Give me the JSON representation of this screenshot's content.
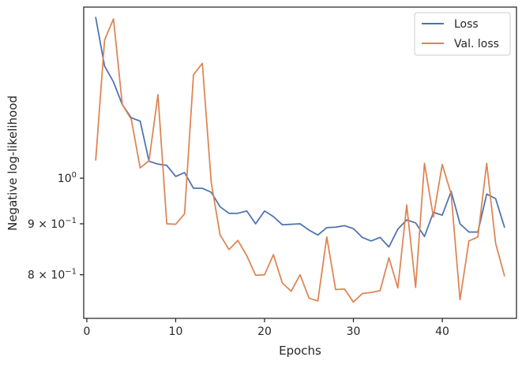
{
  "chart_data": {
    "type": "line",
    "xlabel": "Epochs",
    "ylabel": "Negative log-likelihood",
    "xlim": [
      -0.35,
      48.35
    ],
    "ylim": [
      0.7233,
      1.485
    ],
    "yscale": "log",
    "x_ticks": [
      0,
      10,
      20,
      30,
      40
    ],
    "x_tick_labels": [
      "0",
      "10",
      "20",
      "30",
      "40"
    ],
    "y_ticks": [
      1.0,
      0.9,
      0.8
    ],
    "y_tick_labels": [
      {
        "base": "10",
        "exp": "0"
      },
      {
        "base": "9 × 10",
        "exp": "−1"
      },
      {
        "base": "8 × 10",
        "exp": "−1"
      }
    ],
    "grid": false,
    "legend_position": "top-right",
    "series": [
      {
        "name": "Loss",
        "color": "#4c72b0",
        "x": [
          1,
          2,
          3,
          4,
          5,
          6,
          7,
          8,
          9,
          10,
          11,
          12,
          13,
          14,
          15,
          16,
          17,
          18,
          19,
          20,
          21,
          22,
          23,
          24,
          25,
          26,
          27,
          28,
          29,
          30,
          31,
          32,
          33,
          34,
          35,
          36,
          37,
          38,
          39,
          40,
          41,
          42,
          43,
          44,
          45,
          46,
          47
        ],
        "values": [
          1.45,
          1.296,
          1.249,
          1.185,
          1.15,
          1.141,
          1.04,
          1.033,
          1.03,
          1.004,
          1.013,
          0.977,
          0.977,
          0.968,
          0.936,
          0.922,
          0.922,
          0.927,
          0.9,
          0.927,
          0.915,
          0.898,
          0.899,
          0.9,
          0.887,
          0.877,
          0.892,
          0.893,
          0.896,
          0.89,
          0.872,
          0.865,
          0.872,
          0.853,
          0.889,
          0.908,
          0.902,
          0.874,
          0.924,
          0.918,
          0.97,
          0.9,
          0.883,
          0.883,
          0.964,
          0.954,
          0.893
        ]
      },
      {
        "name": "Val. loss",
        "color": "#dd8452",
        "x": [
          1,
          2,
          3,
          4,
          5,
          6,
          7,
          8,
          9,
          10,
          11,
          12,
          13,
          14,
          15,
          16,
          17,
          18,
          19,
          20,
          21,
          22,
          23,
          24,
          25,
          26,
          27,
          28,
          29,
          30,
          31,
          32,
          33,
          34,
          35,
          36,
          37,
          38,
          39,
          40,
          41,
          42,
          43,
          44,
          45,
          46,
          47
        ],
        "values": [
          1.043,
          1.376,
          1.445,
          1.185,
          1.146,
          1.024,
          1.041,
          1.213,
          0.9,
          0.899,
          0.921,
          1.27,
          1.304,
          0.99,
          0.877,
          0.848,
          0.866,
          0.836,
          0.799,
          0.8,
          0.838,
          0.785,
          0.77,
          0.8,
          0.758,
          0.753,
          0.873,
          0.773,
          0.774,
          0.751,
          0.766,
          0.768,
          0.771,
          0.832,
          0.776,
          0.94,
          0.777,
          1.035,
          0.914,
          1.032,
          0.964,
          0.755,
          0.865,
          0.873,
          1.035,
          0.86,
          0.798
        ]
      }
    ]
  }
}
